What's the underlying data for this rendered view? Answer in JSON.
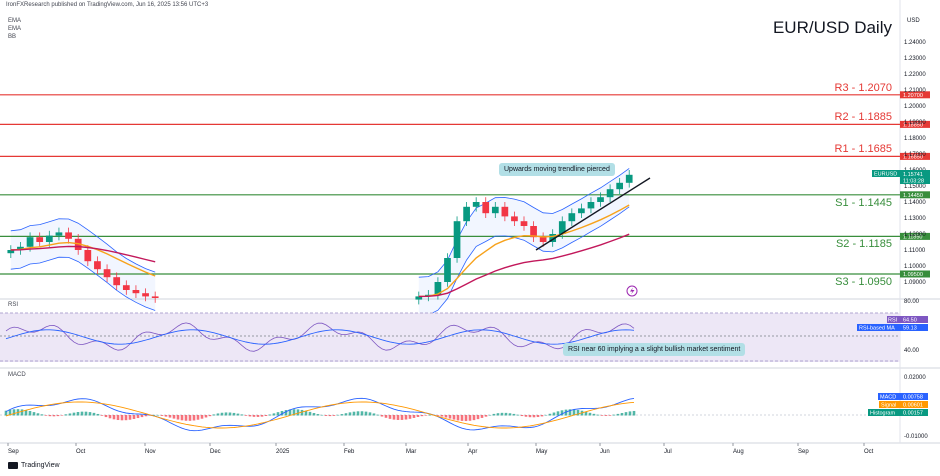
{
  "header": {
    "published": "IronFXResearch published on TradingView.com, Jun 16, 2025 13:56 UTC+3",
    "indicators": [
      "EMA",
      "EMA",
      "BB"
    ],
    "title": "EUR/USD Daily"
  },
  "axis": {
    "currency": "USD",
    "price_ticks": [
      "1.24000",
      "1.23000",
      "1.22000",
      "1.21000",
      "1.20000",
      "1.19000",
      "1.18000",
      "1.17000",
      "1.16000",
      "1.15000",
      "1.14000",
      "1.13000",
      "1.12000",
      "1.11000",
      "1.10000",
      "1.09000"
    ],
    "x_ticks": [
      "Sep",
      "Oct",
      "Nov",
      "Dec",
      "2025",
      "Feb",
      "Mar",
      "Apr",
      "May",
      "Jun",
      "Jul",
      "Aug",
      "Sep",
      "Oct"
    ]
  },
  "levels": [
    {
      "label": "R3 - 1.2070",
      "tag": "1.20700",
      "value": 1.207,
      "color": "#e53935"
    },
    {
      "label": "R2 - 1.1885",
      "tag": "1.18850",
      "value": 1.1885,
      "color": "#e53935"
    },
    {
      "label": "R1 - 1.1685",
      "tag": "1.16850",
      "value": 1.1685,
      "color": "#e53935"
    },
    {
      "label": "S1 - 1.1445",
      "tag": "1.14450",
      "value": 1.1445,
      "color": "#388e3c"
    },
    {
      "label": "S2 - 1.1185",
      "tag": "1.11850",
      "value": 1.1185,
      "color": "#388e3c"
    },
    {
      "label": "S3 - 1.0950",
      "tag": "1.09500",
      "value": 1.095,
      "color": "#388e3c"
    }
  ],
  "price_tag": {
    "symbol": "EURUSD",
    "price": "1.15741",
    "countdown": "11:03:28"
  },
  "annotations": {
    "trendline": "Upwards moving trendline  pierced",
    "rsi": "RSI near 60 implying a a slight bullish market sentiment"
  },
  "rsi": {
    "label": "RSI",
    "ticks": [
      "80.00",
      "40.00"
    ],
    "tags": [
      {
        "name": "RSI",
        "value": "64.50"
      },
      {
        "name": "RSI-based MA",
        "value": "59.13"
      }
    ]
  },
  "macd": {
    "label": "MACD",
    "ticks": [
      "0.02000",
      "-0.01000"
    ],
    "tags": [
      {
        "name": "MACD",
        "value": "0.00758"
      },
      {
        "name": "Signal",
        "value": "0.00601"
      },
      {
        "name": "Histogram",
        "value": "0.00157"
      }
    ]
  },
  "footer": "TradingView",
  "colors": {
    "candle_up": "#089981",
    "candle_down": "#f23645",
    "ema_fast": "#f7a21b",
    "ema_slow": "#c2185b",
    "bb": "#2962ff",
    "rsi": "#7e57c2",
    "rsi_ma": "#2962ff",
    "macd": "#2962ff",
    "signal": "#ff9800"
  },
  "chart_data": {
    "type": "candlestick",
    "title": "EUR/USD Daily",
    "ylim": [
      1.08,
      1.245
    ],
    "x_range": [
      "2024-09",
      "2025-10"
    ],
    "visible_segments": [
      {
        "period": "2024-09 to 2024-11",
        "closes": [
          1.11,
          1.112,
          1.118,
          1.115,
          1.119,
          1.121,
          1.117,
          1.11,
          1.103,
          1.098,
          1.093,
          1.088,
          1.085,
          1.083,
          1.081,
          1.08
        ]
      },
      {
        "period": "2025-03 to 2025-06",
        "closes": [
          1.081,
          1.082,
          1.09,
          1.105,
          1.128,
          1.137,
          1.14,
          1.133,
          1.137,
          1.131,
          1.128,
          1.125,
          1.118,
          1.115,
          1.12,
          1.128,
          1.133,
          1.136,
          1.14,
          1.143,
          1.148,
          1.152,
          1.157
        ]
      }
    ],
    "trendline": {
      "from": {
        "date": "2025-05",
        "value": 1.11
      },
      "to": {
        "date": "2025-06-16",
        "value": 1.152
      }
    },
    "last_close": 1.15741
  }
}
